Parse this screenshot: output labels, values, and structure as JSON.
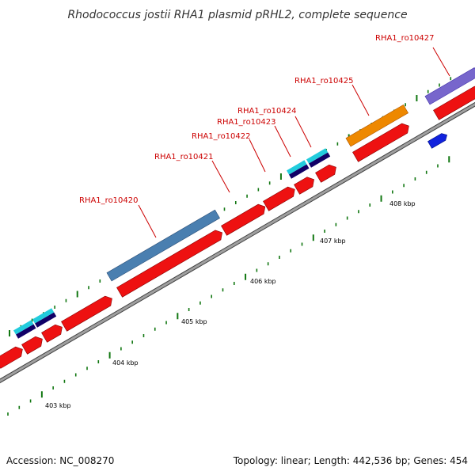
{
  "title": "Rhodococcus jostii RHA1 plasmid pRHL2, complete sequence",
  "footer": {
    "accession": "Accession: NC_008270",
    "summary": "Topology: linear; Length: 442,536 bp; Genes: 454"
  },
  "colors": {
    "gene": "#ee1111",
    "cds_light": "#22ccdd",
    "cds_dark": "#110066",
    "steelblue": "#4a7fb0",
    "orange": "#ee8800",
    "purple": "#7766cc",
    "blue": "#1122dd",
    "tick": "#117711",
    "backbone": "#999999",
    "label": "#cc0000"
  },
  "scale_labels": [
    "403 kbp",
    "404 kbp",
    "405 kbp",
    "406 kbp",
    "407 kbp",
    "408 kbp"
  ],
  "gene_labels": [
    "RHA1_ro10420",
    "RHA1_ro10421",
    "RHA1_ro10422",
    "RHA1_ro10423",
    "RHA1_ro10424",
    "RHA1_ro10425",
    "RHA1_ro10427"
  ]
}
